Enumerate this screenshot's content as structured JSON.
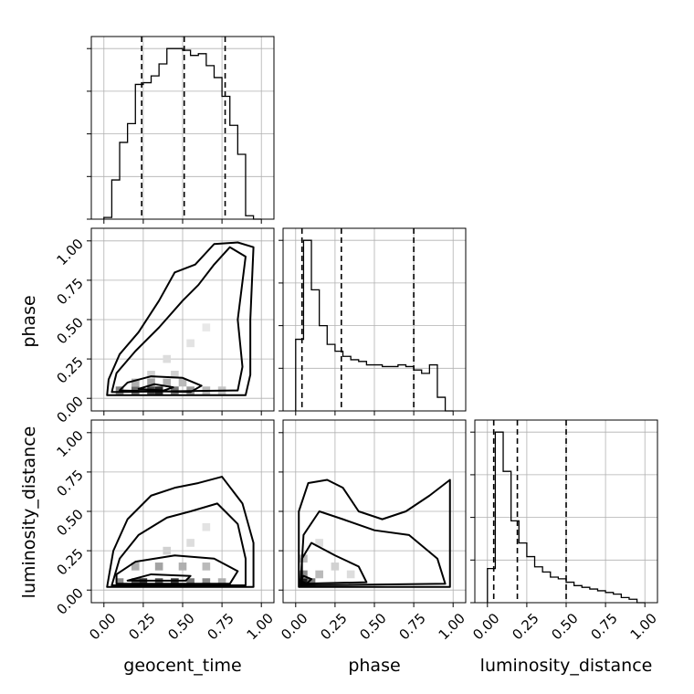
{
  "chart_data": {
    "type": "corner",
    "params": [
      "geocent_time",
      "phase",
      "luminosity_distance"
    ],
    "tick_labels": [
      "0.00",
      "0.25",
      "0.50",
      "0.75",
      "1.00"
    ],
    "axis_range": [
      -0.08,
      1.08
    ],
    "grid": true,
    "bins": 20,
    "histograms": [
      {
        "param": "geocent_time",
        "bin_edges": [
          0.0,
          0.05,
          0.1,
          0.15,
          0.2,
          0.25,
          0.3,
          0.35,
          0.4,
          0.45,
          0.5,
          0.55,
          0.6,
          0.65,
          0.7,
          0.75,
          0.8,
          0.85,
          0.9,
          0.95,
          1.0
        ],
        "counts": [
          0.01,
          0.23,
          0.45,
          0.56,
          0.79,
          0.8,
          0.84,
          0.91,
          1.0,
          1.0,
          0.99,
          0.96,
          0.97,
          0.9,
          0.83,
          0.72,
          0.55,
          0.38,
          0.02,
          0.0
        ],
        "quantiles": [
          0.24,
          0.51,
          0.77
        ]
      },
      {
        "param": "phase",
        "bin_edges": [
          0.0,
          0.05,
          0.1,
          0.15,
          0.2,
          0.25,
          0.3,
          0.35,
          0.4,
          0.45,
          0.5,
          0.55,
          0.6,
          0.65,
          0.7,
          0.75,
          0.8,
          0.85,
          0.9,
          0.95,
          1.0
        ],
        "counts": [
          0.42,
          1.0,
          0.71,
          0.5,
          0.39,
          0.35,
          0.32,
          0.3,
          0.29,
          0.27,
          0.27,
          0.26,
          0.26,
          0.27,
          0.26,
          0.24,
          0.22,
          0.27,
          0.08,
          0.0
        ],
        "quantiles": [
          0.04,
          0.29,
          0.75
        ]
      },
      {
        "param": "luminosity_distance",
        "bin_edges": [
          0.0,
          0.05,
          0.1,
          0.15,
          0.2,
          0.25,
          0.3,
          0.35,
          0.4,
          0.45,
          0.5,
          0.55,
          0.6,
          0.65,
          0.7,
          0.75,
          0.8,
          0.85,
          0.9,
          0.95,
          1.0
        ],
        "counts": [
          0.2,
          1.0,
          0.77,
          0.48,
          0.35,
          0.27,
          0.21,
          0.18,
          0.15,
          0.14,
          0.12,
          0.1,
          0.09,
          0.08,
          0.07,
          0.06,
          0.05,
          0.03,
          0.02,
          0.0
        ],
        "quantiles": [
          0.04,
          0.19,
          0.5
        ]
      }
    ],
    "joint_plots": [
      {
        "x": "geocent_time",
        "y": "phase",
        "density_cells": [
          {
            "x": 0.1,
            "y": 0.05,
            "v": 0.55
          },
          {
            "x": 0.2,
            "y": 0.05,
            "v": 0.65
          },
          {
            "x": 0.3,
            "y": 0.05,
            "v": 0.8
          },
          {
            "x": 0.35,
            "y": 0.05,
            "v": 0.95
          },
          {
            "x": 0.45,
            "y": 0.05,
            "v": 0.6
          },
          {
            "x": 0.55,
            "y": 0.05,
            "v": 0.45
          },
          {
            "x": 0.65,
            "y": 0.05,
            "v": 0.3
          },
          {
            "x": 0.75,
            "y": 0.05,
            "v": 0.25
          },
          {
            "x": 0.2,
            "y": 0.1,
            "v": 0.35
          },
          {
            "x": 0.3,
            "y": 0.1,
            "v": 0.4
          },
          {
            "x": 0.4,
            "y": 0.1,
            "v": 0.35
          },
          {
            "x": 0.5,
            "y": 0.1,
            "v": 0.3
          },
          {
            "x": 0.3,
            "y": 0.15,
            "v": 0.2
          },
          {
            "x": 0.45,
            "y": 0.15,
            "v": 0.2
          },
          {
            "x": 0.4,
            "y": 0.25,
            "v": 0.15
          },
          {
            "x": 0.55,
            "y": 0.35,
            "v": 0.12
          },
          {
            "x": 0.65,
            "y": 0.45,
            "v": 0.1
          }
        ],
        "contours": [
          [
            [
              0.02,
              0.02
            ],
            [
              0.9,
              0.02
            ],
            [
              0.93,
              0.15
            ],
            [
              0.93,
              0.5
            ],
            [
              0.95,
              0.96
            ],
            [
              0.85,
              0.99
            ],
            [
              0.7,
              0.98
            ],
            [
              0.58,
              0.85
            ],
            [
              0.45,
              0.8
            ],
            [
              0.35,
              0.62
            ],
            [
              0.22,
              0.42
            ],
            [
              0.1,
              0.28
            ],
            [
              0.03,
              0.12
            ],
            [
              0.02,
              0.02
            ]
          ],
          [
            [
              0.05,
              0.04
            ],
            [
              0.85,
              0.05
            ],
            [
              0.88,
              0.2
            ],
            [
              0.85,
              0.5
            ],
            [
              0.9,
              0.9
            ],
            [
              0.8,
              0.96
            ],
            [
              0.7,
              0.85
            ],
            [
              0.6,
              0.72
            ],
            [
              0.5,
              0.62
            ],
            [
              0.35,
              0.45
            ],
            [
              0.2,
              0.3
            ],
            [
              0.08,
              0.16
            ],
            [
              0.05,
              0.04
            ]
          ],
          [
            [
              0.1,
              0.05
            ],
            [
              0.55,
              0.04
            ],
            [
              0.62,
              0.08
            ],
            [
              0.5,
              0.13
            ],
            [
              0.3,
              0.14
            ],
            [
              0.15,
              0.1
            ],
            [
              0.1,
              0.05
            ]
          ],
          [
            [
              0.22,
              0.06
            ],
            [
              0.38,
              0.05
            ],
            [
              0.44,
              0.07
            ],
            [
              0.32,
              0.09
            ],
            [
              0.22,
              0.06
            ]
          ]
        ]
      },
      {
        "x": "geocent_time",
        "y": "luminosity_distance",
        "density_cells": [
          {
            "x": 0.1,
            "y": 0.05,
            "v": 0.5
          },
          {
            "x": 0.2,
            "y": 0.05,
            "v": 0.7
          },
          {
            "x": 0.25,
            "y": 0.05,
            "v": 0.9
          },
          {
            "x": 0.35,
            "y": 0.05,
            "v": 0.75
          },
          {
            "x": 0.45,
            "y": 0.05,
            "v": 0.85
          },
          {
            "x": 0.55,
            "y": 0.05,
            "v": 0.6
          },
          {
            "x": 0.65,
            "y": 0.05,
            "v": 0.5
          },
          {
            "x": 0.75,
            "y": 0.05,
            "v": 0.35
          },
          {
            "x": 0.2,
            "y": 0.15,
            "v": 0.35
          },
          {
            "x": 0.35,
            "y": 0.15,
            "v": 0.4
          },
          {
            "x": 0.5,
            "y": 0.15,
            "v": 0.35
          },
          {
            "x": 0.65,
            "y": 0.15,
            "v": 0.3
          },
          {
            "x": 0.4,
            "y": 0.25,
            "v": 0.2
          },
          {
            "x": 0.55,
            "y": 0.3,
            "v": 0.15
          },
          {
            "x": 0.65,
            "y": 0.4,
            "v": 0.12
          }
        ],
        "contours": [
          [
            [
              0.02,
              0.02
            ],
            [
              0.95,
              0.02
            ],
            [
              0.95,
              0.3
            ],
            [
              0.88,
              0.55
            ],
            [
              0.75,
              0.72
            ],
            [
              0.6,
              0.68
            ],
            [
              0.45,
              0.65
            ],
            [
              0.3,
              0.6
            ],
            [
              0.15,
              0.45
            ],
            [
              0.06,
              0.25
            ],
            [
              0.02,
              0.02
            ]
          ],
          [
            [
              0.05,
              0.03
            ],
            [
              0.9,
              0.03
            ],
            [
              0.9,
              0.2
            ],
            [
              0.85,
              0.42
            ],
            [
              0.72,
              0.55
            ],
            [
              0.55,
              0.5
            ],
            [
              0.4,
              0.46
            ],
            [
              0.22,
              0.35
            ],
            [
              0.1,
              0.2
            ],
            [
              0.05,
              0.03
            ]
          ],
          [
            [
              0.08,
              0.04
            ],
            [
              0.8,
              0.04
            ],
            [
              0.85,
              0.12
            ],
            [
              0.7,
              0.2
            ],
            [
              0.45,
              0.22
            ],
            [
              0.2,
              0.18
            ],
            [
              0.08,
              0.1
            ],
            [
              0.08,
              0.04
            ]
          ],
          [
            [
              0.15,
              0.06
            ],
            [
              0.52,
              0.06
            ],
            [
              0.55,
              0.09
            ],
            [
              0.3,
              0.1
            ],
            [
              0.15,
              0.06
            ]
          ]
        ]
      },
      {
        "x": "phase",
        "y": "luminosity_distance",
        "density_cells": [
          {
            "x": 0.05,
            "y": 0.05,
            "v": 1.0
          },
          {
            "x": 0.1,
            "y": 0.05,
            "v": 0.6
          },
          {
            "x": 0.05,
            "y": 0.1,
            "v": 0.5
          },
          {
            "x": 0.15,
            "y": 0.1,
            "v": 0.3
          },
          {
            "x": 0.05,
            "y": 0.2,
            "v": 0.3
          },
          {
            "x": 0.25,
            "y": 0.15,
            "v": 0.2
          },
          {
            "x": 0.35,
            "y": 0.1,
            "v": 0.15
          },
          {
            "x": 0.15,
            "y": 0.3,
            "v": 0.15
          }
        ],
        "contours": [
          [
            [
              0.02,
              0.02
            ],
            [
              0.98,
              0.02
            ],
            [
              0.98,
              0.7
            ],
            [
              0.85,
              0.6
            ],
            [
              0.7,
              0.5
            ],
            [
              0.55,
              0.45
            ],
            [
              0.4,
              0.5
            ],
            [
              0.3,
              0.65
            ],
            [
              0.2,
              0.7
            ],
            [
              0.08,
              0.68
            ],
            [
              0.02,
              0.5
            ],
            [
              0.02,
              0.02
            ]
          ],
          [
            [
              0.03,
              0.03
            ],
            [
              0.95,
              0.04
            ],
            [
              0.9,
              0.2
            ],
            [
              0.72,
              0.35
            ],
            [
              0.5,
              0.38
            ],
            [
              0.3,
              0.45
            ],
            [
              0.15,
              0.5
            ],
            [
              0.05,
              0.35
            ],
            [
              0.03,
              0.03
            ]
          ],
          [
            [
              0.04,
              0.04
            ],
            [
              0.45,
              0.05
            ],
            [
              0.4,
              0.15
            ],
            [
              0.25,
              0.22
            ],
            [
              0.1,
              0.3
            ],
            [
              0.04,
              0.2
            ],
            [
              0.04,
              0.04
            ]
          ],
          [
            [
              0.03,
              0.06
            ],
            [
              0.07,
              0.04
            ],
            [
              0.1,
              0.07
            ],
            [
              0.05,
              0.09
            ],
            [
              0.03,
              0.06
            ]
          ]
        ]
      }
    ]
  }
}
